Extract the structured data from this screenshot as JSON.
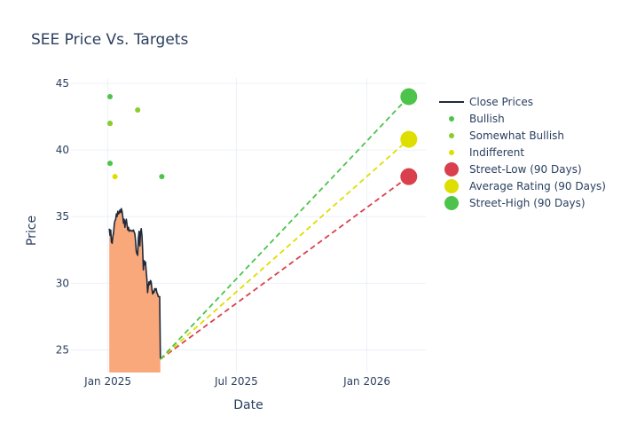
{
  "chart_data": {
    "type": "line",
    "title": "SEE Price Vs. Targets",
    "xlabel": "Date",
    "ylabel": "Price",
    "xlim": [
      "2024-11-10",
      "2026-03-25"
    ],
    "ylim": [
      23.3,
      45.4
    ],
    "x_ticks": [
      {
        "date": "2025-01-01",
        "label": "Jan 2025"
      },
      {
        "date": "2025-07-01",
        "label": "Jul 2025"
      },
      {
        "date": "2026-01-01",
        "label": "Jan 2026"
      }
    ],
    "y_ticks": [
      25,
      30,
      35,
      40,
      45
    ],
    "grid": true,
    "legend_position": "right",
    "close_prices": {
      "name": "Close Prices",
      "line_color": "#1f2a3a",
      "fill_color": "#f9a87c",
      "points": [
        [
          "2025-01-03",
          34.1
        ],
        [
          "2025-01-04",
          33.6
        ],
        [
          "2025-01-05",
          34.0
        ],
        [
          "2025-01-06",
          33.1
        ],
        [
          "2025-01-07",
          33.0
        ],
        [
          "2025-01-08",
          33.5
        ],
        [
          "2025-01-09",
          33.8
        ],
        [
          "2025-01-10",
          34.4
        ],
        [
          "2025-01-11",
          34.7
        ],
        [
          "2025-01-12",
          34.8
        ],
        [
          "2025-01-13",
          35.2
        ],
        [
          "2025-01-14",
          35.0
        ],
        [
          "2025-01-15",
          35.4
        ],
        [
          "2025-01-16",
          35.2
        ],
        [
          "2025-01-17",
          35.3
        ],
        [
          "2025-01-18",
          35.5
        ],
        [
          "2025-01-19",
          35.3
        ],
        [
          "2025-01-20",
          35.6
        ],
        [
          "2025-01-21",
          35.4
        ],
        [
          "2025-01-22",
          35.0
        ],
        [
          "2025-01-23",
          34.5
        ],
        [
          "2025-01-24",
          34.8
        ],
        [
          "2025-01-25",
          34.2
        ],
        [
          "2025-01-26",
          34.6
        ],
        [
          "2025-01-27",
          34.8
        ],
        [
          "2025-01-28",
          34.4
        ],
        [
          "2025-01-29",
          34.0
        ],
        [
          "2025-01-30",
          34.2
        ],
        [
          "2025-01-31",
          33.9
        ],
        [
          "2025-02-02",
          34.0
        ],
        [
          "2025-02-04",
          33.9
        ],
        [
          "2025-02-06",
          34.0
        ],
        [
          "2025-02-08",
          33.7
        ],
        [
          "2025-02-09",
          33.2
        ],
        [
          "2025-02-10",
          32.4
        ],
        [
          "2025-02-11",
          32.2
        ],
        [
          "2025-02-12",
          32.1
        ],
        [
          "2025-02-13",
          33.4
        ],
        [
          "2025-02-14",
          33.9
        ],
        [
          "2025-02-15",
          32.8
        ],
        [
          "2025-02-16",
          33.8
        ],
        [
          "2025-02-17",
          34.1
        ],
        [
          "2025-02-18",
          33.6
        ],
        [
          "2025-02-19",
          32.5
        ],
        [
          "2025-02-20",
          31.0
        ],
        [
          "2025-02-21",
          31.7
        ],
        [
          "2025-02-22",
          31.4
        ],
        [
          "2025-02-23",
          31.6
        ],
        [
          "2025-02-24",
          30.9
        ],
        [
          "2025-02-25",
          30.3
        ],
        [
          "2025-02-26",
          29.3
        ],
        [
          "2025-02-27",
          29.8
        ],
        [
          "2025-02-28",
          30.1
        ],
        [
          "2025-03-01",
          29.9
        ],
        [
          "2025-03-02",
          30.2
        ],
        [
          "2025-03-03",
          30.1
        ],
        [
          "2025-03-04",
          29.6
        ],
        [
          "2025-03-05",
          29.2
        ],
        [
          "2025-03-06",
          29.4
        ],
        [
          "2025-03-07",
          29.3
        ],
        [
          "2025-03-08",
          29.6
        ],
        [
          "2025-03-09",
          29.5
        ],
        [
          "2025-03-10",
          29.6
        ],
        [
          "2025-03-11",
          29.3
        ],
        [
          "2025-03-12",
          29.2
        ],
        [
          "2025-03-13",
          29.0
        ],
        [
          "2025-03-14",
          29.0
        ],
        [
          "2025-03-15",
          29.0
        ],
        [
          "2025-03-16",
          24.3
        ]
      ]
    },
    "analyst_ratings": [
      {
        "name": "Bullish",
        "color": "#4cc44c",
        "points": [
          [
            "2025-01-04",
            44
          ],
          [
            "2025-01-04",
            42
          ],
          [
            "2025-01-04",
            39
          ],
          [
            "2025-03-18",
            38
          ]
        ]
      },
      {
        "name": "Somewhat Bullish",
        "color": "#8ccc2a",
        "points": [
          [
            "2025-01-04",
            42
          ],
          [
            "2025-02-12",
            43
          ]
        ]
      },
      {
        "name": "Indifferent",
        "color": "#dede00",
        "points": [
          [
            "2025-01-11",
            38
          ]
        ]
      }
    ],
    "targets": [
      {
        "name": "Street-Low (90 Days)",
        "color": "#d9404e",
        "value": 38.0
      },
      {
        "name": "Average Rating (90 Days)",
        "color": "#dede00",
        "value": 40.8
      },
      {
        "name": "Street-High (90 Days)",
        "color": "#4cc44c",
        "value": 44.0
      }
    ],
    "target_start": [
      "2025-03-16",
      24.3
    ],
    "target_date": "2026-03-01"
  }
}
